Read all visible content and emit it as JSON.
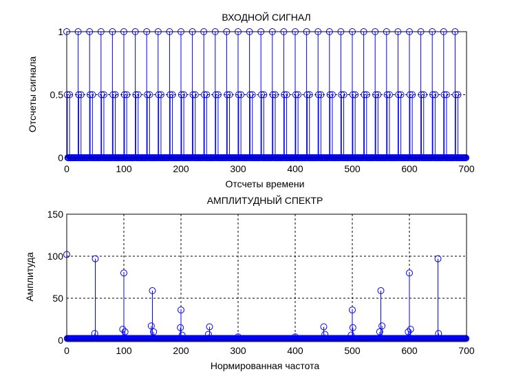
{
  "chart_data": [
    {
      "type": "stem",
      "title": "ВХОДНОЙ СИГНАЛ",
      "xlabel": "Отсчеты времени",
      "ylabel": "Отсчеты сигнала",
      "xlim": [
        0,
        700
      ],
      "ylim": [
        0,
        1
      ],
      "xticks": [
        0,
        100,
        200,
        300,
        400,
        500,
        600,
        700
      ],
      "xtick_labels": [
        "0",
        "100",
        "200",
        "300",
        "400",
        "500",
        "600",
        "700"
      ],
      "yticks": [
        0,
        0.5,
        1
      ],
      "ytick_labels": [
        "0",
        "0.5",
        "1"
      ],
      "grid": true,
      "color": "#0000ff",
      "series": [
        {
          "description": "periodic pulse pattern, period about 20 samples",
          "period": 20,
          "n_samples": 700,
          "pattern": [
            1,
            0.5,
            0,
            0,
            0,
            0.5,
            0,
            0,
            0,
            0,
            0,
            0,
            0,
            0,
            0,
            0,
            0,
            0,
            0,
            0
          ]
        }
      ]
    },
    {
      "type": "stem",
      "title": "АМПЛИТУДНЫЙ СПЕКТР",
      "xlabel": "Нормированная частота",
      "ylabel": "Амплитуда",
      "xlim": [
        0,
        700
      ],
      "ylim": [
        0,
        150
      ],
      "xticks": [
        0,
        100,
        200,
        300,
        400,
        500,
        600,
        700
      ],
      "xtick_labels": [
        "0",
        "100",
        "200",
        "300",
        "400",
        "500",
        "600",
        "700"
      ],
      "yticks": [
        0,
        50,
        100,
        150
      ],
      "ytick_labels": [
        "0",
        "50",
        "100",
        "150"
      ],
      "grid": true,
      "color": "#0000ff",
      "n_samples": 700,
      "baseline": 2,
      "peaks": [
        {
          "x": 0,
          "y": 102
        },
        {
          "x": 50,
          "y": 97
        },
        {
          "x": 49,
          "y": 8
        },
        {
          "x": 100,
          "y": 80
        },
        {
          "x": 98,
          "y": 13
        },
        {
          "x": 102,
          "y": 10
        },
        {
          "x": 150,
          "y": 59
        },
        {
          "x": 148,
          "y": 17
        },
        {
          "x": 152,
          "y": 10
        },
        {
          "x": 200,
          "y": 36
        },
        {
          "x": 199,
          "y": 15
        },
        {
          "x": 202,
          "y": 6
        },
        {
          "x": 250,
          "y": 16
        },
        {
          "x": 248,
          "y": 7
        },
        {
          "x": 300,
          "y": 4
        },
        {
          "x": 400,
          "y": 4
        },
        {
          "x": 450,
          "y": 16
        },
        {
          "x": 452,
          "y": 7
        },
        {
          "x": 500,
          "y": 36
        },
        {
          "x": 501,
          "y": 15
        },
        {
          "x": 498,
          "y": 6
        },
        {
          "x": 550,
          "y": 59
        },
        {
          "x": 552,
          "y": 17
        },
        {
          "x": 548,
          "y": 10
        },
        {
          "x": 600,
          "y": 80
        },
        {
          "x": 602,
          "y": 13
        },
        {
          "x": 598,
          "y": 10
        },
        {
          "x": 650,
          "y": 97
        },
        {
          "x": 651,
          "y": 8
        }
      ]
    }
  ]
}
